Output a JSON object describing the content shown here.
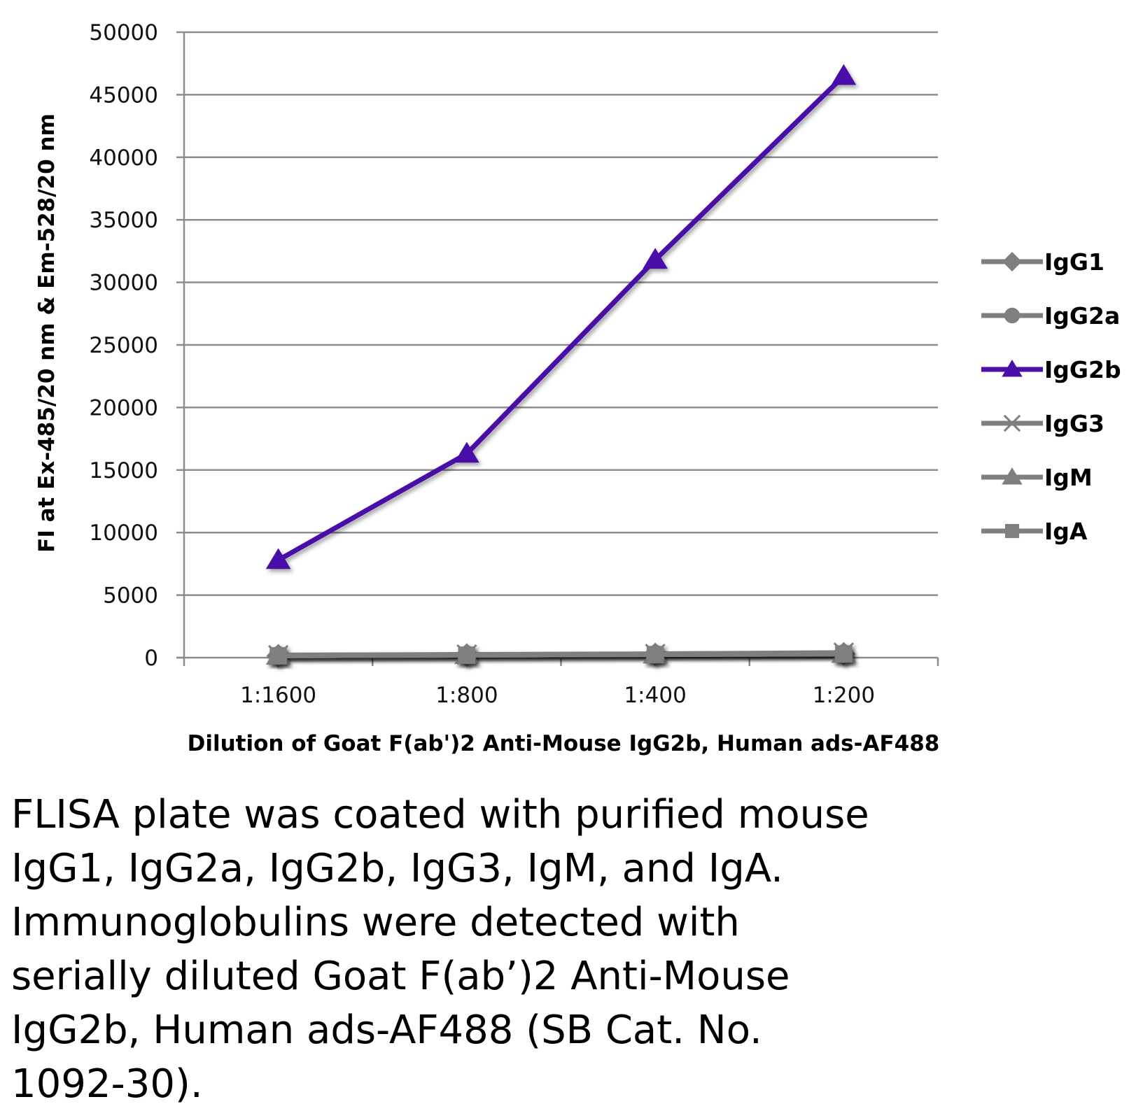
{
  "chart_data": {
    "type": "line",
    "xlabel": "Dilution of Goat F(ab')2 Anti-Mouse IgG2b, Human ads-AF488",
    "ylabel": "FI at Ex-485/20 nm & Em-528/20 nm",
    "categories": [
      "1:1600",
      "1:800",
      "1:400",
      "1:200"
    ],
    "ylim": [
      0,
      50000
    ],
    "yticks": [
      0,
      5000,
      10000,
      15000,
      20000,
      25000,
      30000,
      35000,
      40000,
      45000,
      50000
    ],
    "grid": true,
    "legend_position": "right",
    "series": [
      {
        "name": "IgG1",
        "marker": "diamond",
        "color": "#7f7f7f",
        "values": [
          150,
          200,
          250,
          300
        ]
      },
      {
        "name": "IgG2a",
        "marker": "circle",
        "color": "#7f7f7f",
        "values": [
          150,
          200,
          250,
          300
        ]
      },
      {
        "name": "IgG2b",
        "marker": "triangle",
        "color": "#4a0fa8",
        "values": [
          7800,
          16300,
          31800,
          46500
        ]
      },
      {
        "name": "IgG3",
        "marker": "x",
        "color": "#7f7f7f",
        "values": [
          200,
          250,
          300,
          400
        ]
      },
      {
        "name": "IgM",
        "marker": "triangle",
        "color": "#7f7f7f",
        "values": [
          150,
          200,
          250,
          300
        ]
      },
      {
        "name": "IgA",
        "marker": "square",
        "color": "#7f7f7f",
        "values": [
          150,
          200,
          250,
          300
        ]
      }
    ]
  },
  "caption_lines": [
    "FLISA plate was coated with purified mouse",
    "IgG1, IgG2a, IgG2b, IgG3, IgM, and IgA.",
    "Immunoglobulins were detected with",
    "serially diluted Goat F(ab’)2 Anti-Mouse",
    "IgG2b, Human ads-AF488 (SB Cat. No.",
    "1092-30)."
  ]
}
